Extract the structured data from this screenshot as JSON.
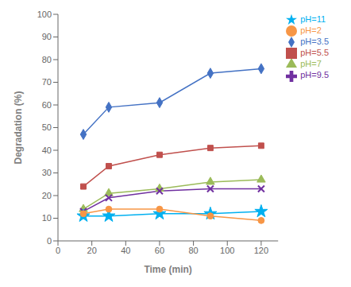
{
  "chart_data": {
    "type": "line",
    "x": [
      15,
      30,
      60,
      90,
      120
    ],
    "series": [
      {
        "name": "pH=3.5",
        "color": "#4472C4",
        "marker": "diamond",
        "values": [
          47,
          59,
          61,
          74,
          76
        ]
      },
      {
        "name": "pH=5.5",
        "color": "#C0504D",
        "marker": "square",
        "values": [
          24,
          33,
          38,
          41,
          42
        ]
      },
      {
        "name": "pH=7",
        "color": "#9BBB59",
        "marker": "triangle",
        "values": [
          14,
          21,
          23,
          26,
          27
        ]
      },
      {
        "name": "pH=9.5",
        "color": "#7030A0",
        "marker": "cross",
        "values": [
          13,
          19,
          22,
          23,
          23
        ]
      },
      {
        "name": "pH=11",
        "color": "#00B0F0",
        "marker": "star",
        "values": [
          11,
          11,
          12,
          12,
          13
        ]
      },
      {
        "name": "pH=2",
        "color": "#F79646",
        "marker": "circle",
        "values": [
          12,
          14,
          14,
          11,
          9
        ]
      }
    ],
    "xlabel": "Time (min)",
    "ylabel": "Degradation (%)",
    "xlim": [
      0,
      130
    ],
    "ylim": [
      0,
      100
    ],
    "xticks": [
      0,
      20,
      40,
      60,
      80,
      100,
      120
    ],
    "yticks": [
      0,
      10,
      20,
      30,
      40,
      50,
      60,
      70,
      80,
      90,
      100
    ],
    "grid": false,
    "legend": "upper right"
  }
}
